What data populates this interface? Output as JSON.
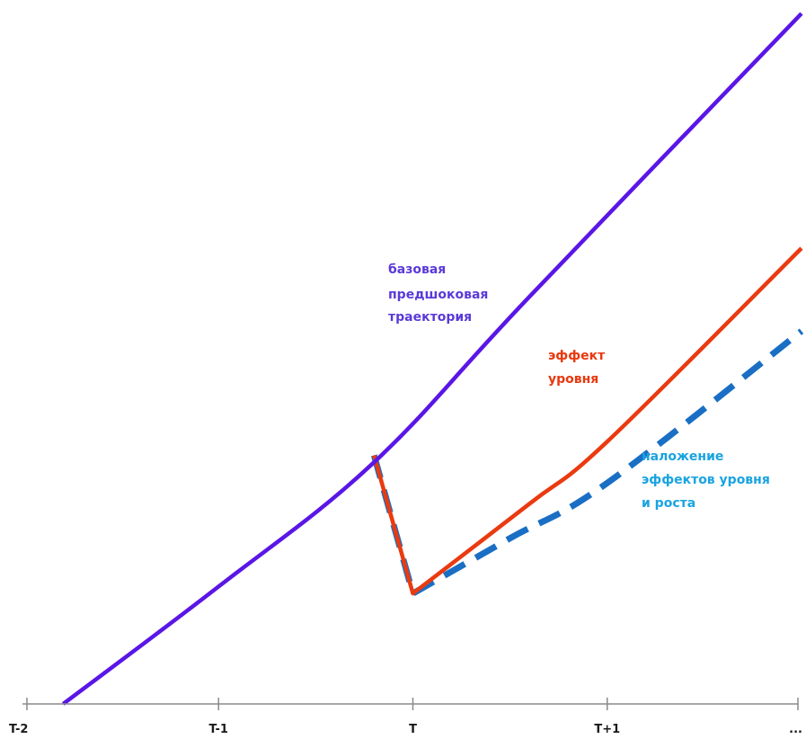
{
  "chart_data": {
    "type": "line",
    "title": "",
    "xlabel": "",
    "ylabel": "",
    "x_ticks": [
      {
        "x": -2,
        "label": "T-2"
      },
      {
        "x": -1,
        "label": "T-1"
      },
      {
        "x": 0,
        "label": "T"
      },
      {
        "x": 1,
        "label": "T+1"
      },
      {
        "x": 2,
        "label": "..."
      }
    ],
    "xlim": [
      -2,
      2
    ],
    "ylim": [
      0,
      100
    ],
    "grid": false,
    "series": [
      {
        "name": "базовая предшоковая траектория",
        "color": "#5a16e6",
        "style": "solid",
        "points": [
          [
            -1.8,
            0
          ],
          [
            -1.0,
            17
          ],
          [
            -0.2,
            35
          ],
          [
            0.6,
            59
          ],
          [
            2.0,
            100
          ]
        ]
      },
      {
        "name": "эффект уровня",
        "color": "#ea3a10",
        "style": "solid",
        "points": [
          [
            -0.2,
            36
          ],
          [
            0.0,
            16
          ],
          [
            0.6,
            29
          ],
          [
            1.0,
            38
          ],
          [
            2.0,
            66
          ]
        ]
      },
      {
        "name": "наложение эффектов уровня и роста",
        "color": "#1a6fc4",
        "style": "dashed",
        "points": [
          [
            -0.2,
            36
          ],
          [
            0.0,
            16
          ],
          [
            0.5,
            24
          ],
          [
            1.0,
            32
          ],
          [
            2.0,
            54
          ]
        ]
      }
    ],
    "annotations": [
      {
        "lines": [
          "базовая",
          "предшоковая",
          "траектория"
        ],
        "color": "#5a3ad8"
      },
      {
        "lines": [
          "эффект",
          "уровня"
        ],
        "color": "#e8380f"
      },
      {
        "lines": [
          "наложение",
          "эффектов уровня",
          "и роста"
        ],
        "color": "#1aa3e0"
      }
    ]
  }
}
